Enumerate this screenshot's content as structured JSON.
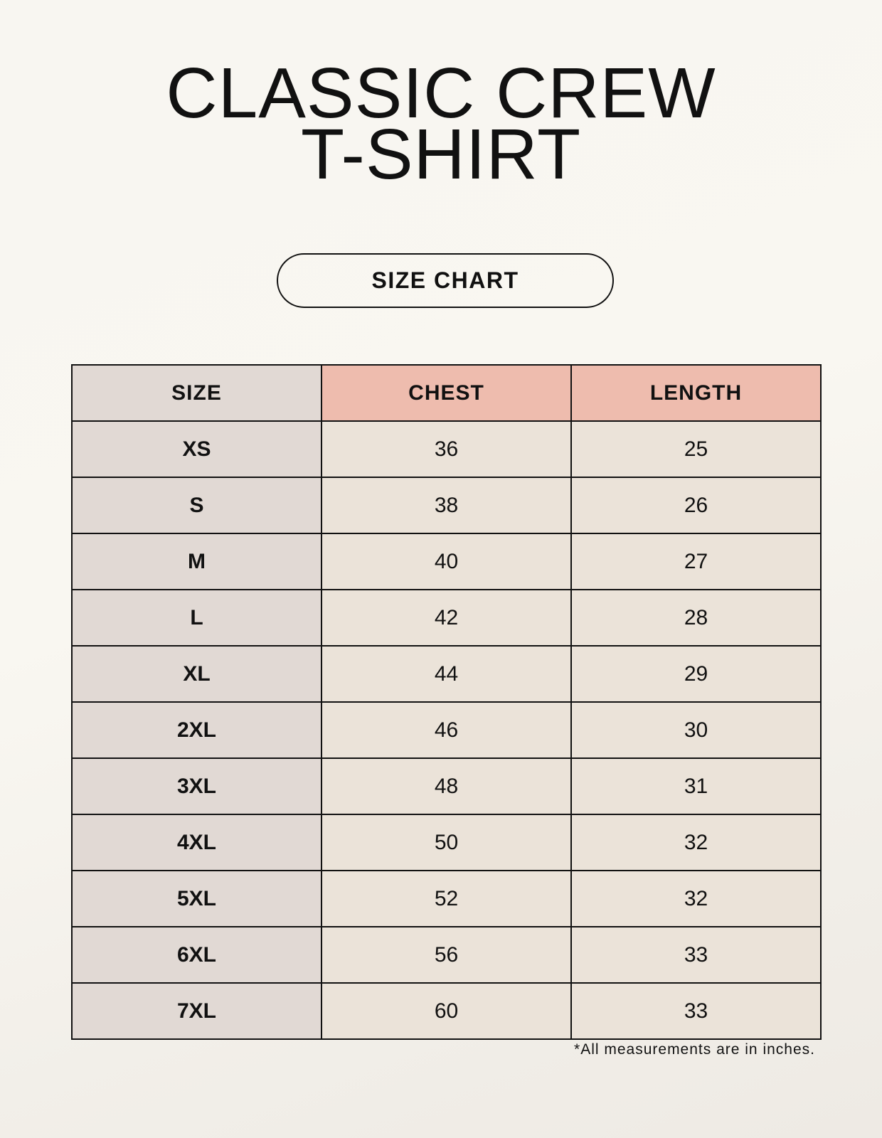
{
  "title": {
    "line1": "CLASSIC CREW",
    "line2": "T-SHIRT"
  },
  "badge": "SIZE CHART",
  "table": {
    "headers": [
      "SIZE",
      "CHEST",
      "LENGTH"
    ],
    "rows": [
      [
        "XS",
        "36",
        "25"
      ],
      [
        "S",
        "38",
        "26"
      ],
      [
        "M",
        "40",
        "27"
      ],
      [
        "L",
        "42",
        "28"
      ],
      [
        "XL",
        "44",
        "29"
      ],
      [
        "2XL",
        "46",
        "30"
      ],
      [
        "3XL",
        "48",
        "31"
      ],
      [
        "4XL",
        "50",
        "32"
      ],
      [
        "5XL",
        "52",
        "32"
      ],
      [
        "6XL",
        "56",
        "33"
      ],
      [
        "7XL",
        "60",
        "33"
      ]
    ]
  },
  "footnote": "*All measurements are in inches.",
  "colors": {
    "size_column": "#e1d9d4",
    "header_accent": "#eebcae",
    "value_cells": "#ebe3d9"
  }
}
